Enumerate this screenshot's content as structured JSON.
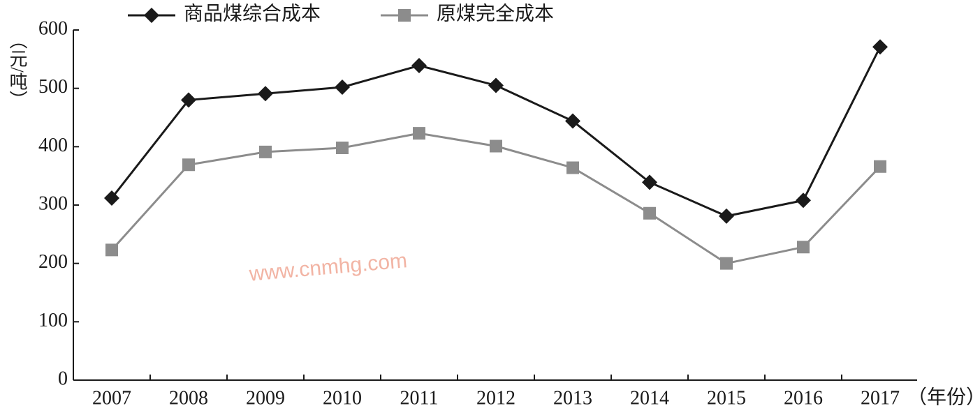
{
  "chart_data": {
    "type": "line",
    "categories": [
      "2007",
      "2008",
      "2009",
      "2010",
      "2011",
      "2012",
      "2013",
      "2014",
      "2015",
      "2016",
      "2017"
    ],
    "series": [
      {
        "name": "商品煤综合成本",
        "color": "#1a1a1a",
        "marker": "diamond",
        "values": [
          312,
          480,
          491,
          502,
          539,
          505,
          444,
          339,
          281,
          308,
          571
        ]
      },
      {
        "name": "原煤完全成本",
        "color": "#8c8c8c",
        "marker": "square",
        "values": [
          223,
          369,
          391,
          398,
          423,
          401,
          364,
          286,
          200,
          228,
          366
        ]
      }
    ],
    "y_label": "（元/吨）",
    "x_label": "（年份）",
    "annotation": "www.cnmhg.com",
    "ylim": [
      0,
      600
    ],
    "yticks": [
      0,
      100,
      200,
      300,
      400,
      500,
      600
    ],
    "grid": false,
    "legend": "top"
  }
}
